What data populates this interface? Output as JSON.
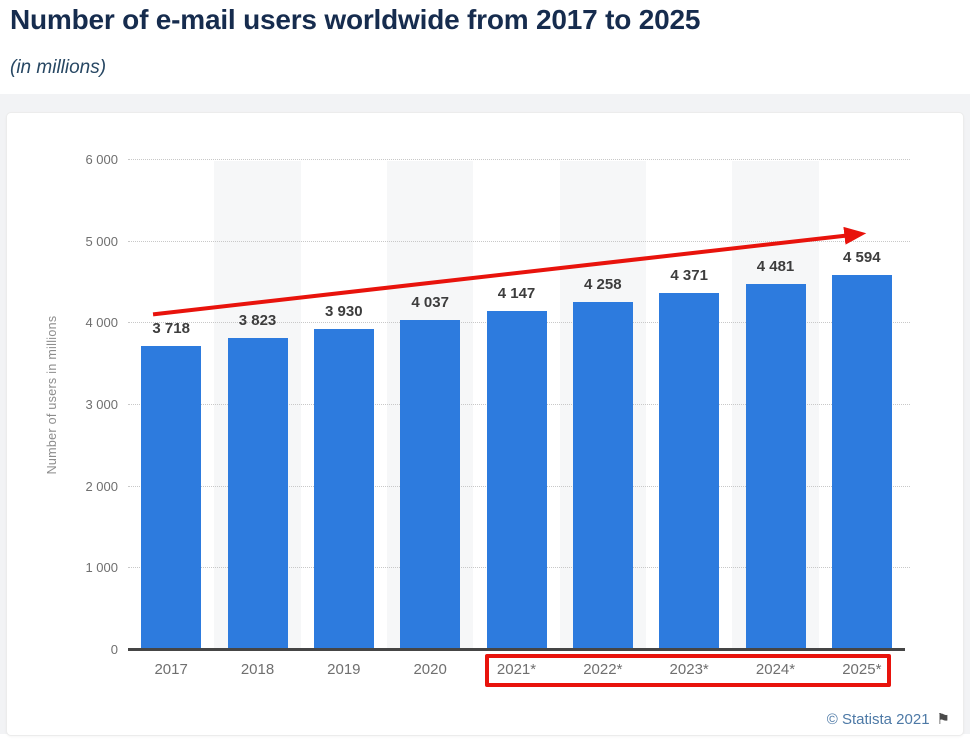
{
  "page": {
    "title": "Number of e-mail users worldwide from 2017 to 2025",
    "subtitle": "(in millions)",
    "footer": {
      "copyright": "© Statista 2021",
      "flag_icon": "⚑"
    }
  },
  "chart_data": {
    "type": "bar",
    "title": "Number of e-mail users worldwide from 2017 to 2025",
    "subtitle": "(in millions)",
    "categories": [
      "2017",
      "2018",
      "2019",
      "2020",
      "2021*",
      "2022*",
      "2023*",
      "2024*",
      "2025*"
    ],
    "values": [
      3718,
      3823,
      3930,
      4037,
      4147,
      4258,
      4371,
      4481,
      4594
    ],
    "value_labels": [
      "3 718",
      "3 823",
      "3 930",
      "4 037",
      "4 147",
      "4 258",
      "4 371",
      "4 481",
      "4 594"
    ],
    "xlabel": "",
    "ylabel": "Number of users in millions",
    "ylim": [
      0,
      6000
    ],
    "ytick_interval": 1000,
    "ytick_labels": [
      "0",
      "1 000",
      "2 000",
      "3 000",
      "4 000",
      "5 000",
      "6 000"
    ],
    "grid": "horizontal-dotted",
    "legend": "none",
    "bar_color": "#2d7bde",
    "stripe_columns": [
      1,
      3,
      5,
      7
    ],
    "annotations": {
      "trend_arrow": {
        "shape": "arrow",
        "color": "#e8130c",
        "start": {
          "col": 0.29,
          "value": 4110
        },
        "end": {
          "col": 8.57,
          "value": 5105
        }
      },
      "highlight_box": {
        "shape": "rectangle",
        "color": "#e8130c",
        "boxed_categories": [
          "2021*",
          "2022*",
          "2023*",
          "2024*",
          "2025*"
        ]
      }
    }
  }
}
